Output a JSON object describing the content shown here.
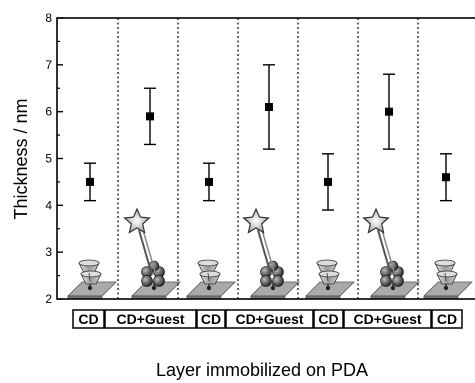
{
  "chart_data": {
    "type": "scatter",
    "title": "",
    "xlabel": "Layer immobilized on PDA",
    "ylabel": "Thickness / nm",
    "ylim": [
      2,
      8
    ],
    "yticks": [
      2,
      3,
      4,
      5,
      6,
      7,
      8
    ],
    "categories": [
      "CD",
      "CD+Guest",
      "CD",
      "CD+Guest",
      "CD",
      "CD+Guest",
      "CD"
    ],
    "values": [
      4.5,
      5.9,
      4.5,
      6.1,
      4.5,
      6.0,
      4.6
    ],
    "error_low": [
      4.1,
      5.3,
      4.1,
      5.2,
      3.9,
      5.2,
      4.1
    ],
    "error_high": [
      4.9,
      6.5,
      4.9,
      7.0,
      5.1,
      6.8,
      5.1
    ],
    "grid": false,
    "separators": "dotted vertical lines between categories",
    "colors": {
      "marker": "#000000",
      "errorbar": "#000000",
      "axis": "#000000",
      "separator": "#000000",
      "cd_cup": "#bbbbbb",
      "guest_star": "#d9d9d9",
      "substrate": "#aaaaaa"
    },
    "illustration": {
      "CD": "cyclodextrin-cup-on-substrate-icon",
      "CD+Guest": "cyclodextrin-with-guest-star-icon"
    }
  }
}
